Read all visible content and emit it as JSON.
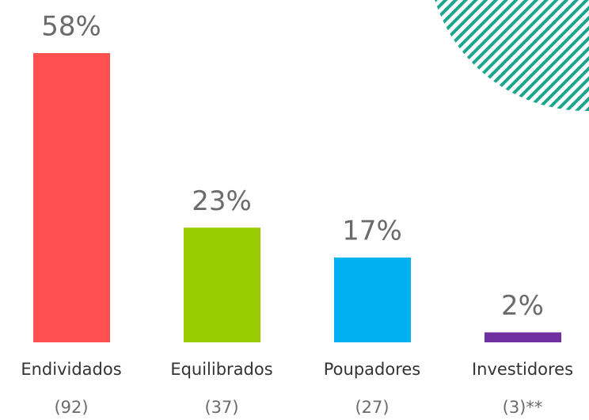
{
  "chart_data": {
    "type": "bar",
    "categories": [
      "Endividados",
      "Equilibrados",
      "Poupadores",
      "Investidores"
    ],
    "sublabels": [
      "(92)",
      "(37)",
      "(27)",
      "(3)**"
    ],
    "values": [
      58,
      23,
      17,
      2
    ],
    "value_labels": [
      "58%",
      "23%",
      "17%",
      "2%"
    ],
    "colors": [
      "#ff5050",
      "#99cc00",
      "#00b0f0",
      "#7030a0"
    ]
  }
}
